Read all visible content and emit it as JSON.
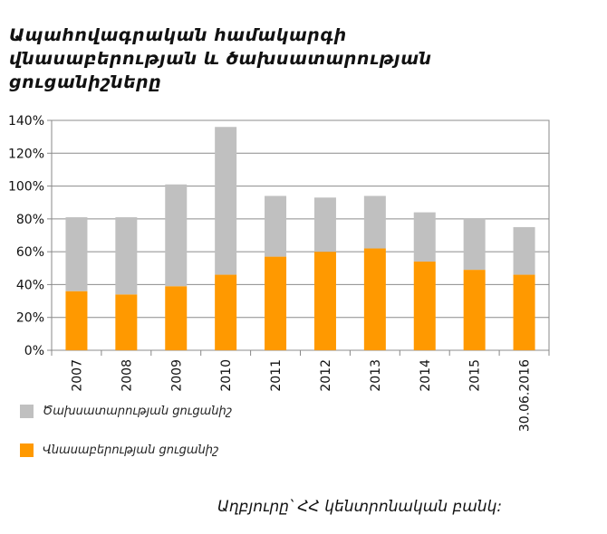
{
  "chart_data": {
    "type": "bar",
    "stacked": true,
    "title": "Ապահովագրական համակարգի վնասաբերության և ծախսատարության ցուցանիշները",
    "categories": [
      "2007",
      "2008",
      "2009",
      "2010",
      "2011",
      "2012",
      "2013",
      "2014",
      "2015",
      "30.06.2016"
    ],
    "series": [
      {
        "name": "Վնասաբերության ցուցանիշ",
        "color": "#FF9900",
        "values": [
          36,
          34,
          39,
          46,
          57,
          60,
          62,
          54,
          49,
          46
        ]
      },
      {
        "name": "Ծախսատարության ցուցանիշ",
        "color": "#C0C0C0",
        "values": [
          45,
          47,
          62,
          90,
          37,
          33,
          32,
          30,
          31,
          29
        ]
      }
    ],
    "y_ticks": [
      "0%",
      "20%",
      "40%",
      "60%",
      "80%",
      "100%",
      "120%",
      "140%"
    ],
    "ylim": [
      0,
      140
    ],
    "grid": true,
    "legend_position": "bottom-left",
    "source": "Աղբյուրը՝ ՀՀ կենտրոնական բանկ:"
  }
}
